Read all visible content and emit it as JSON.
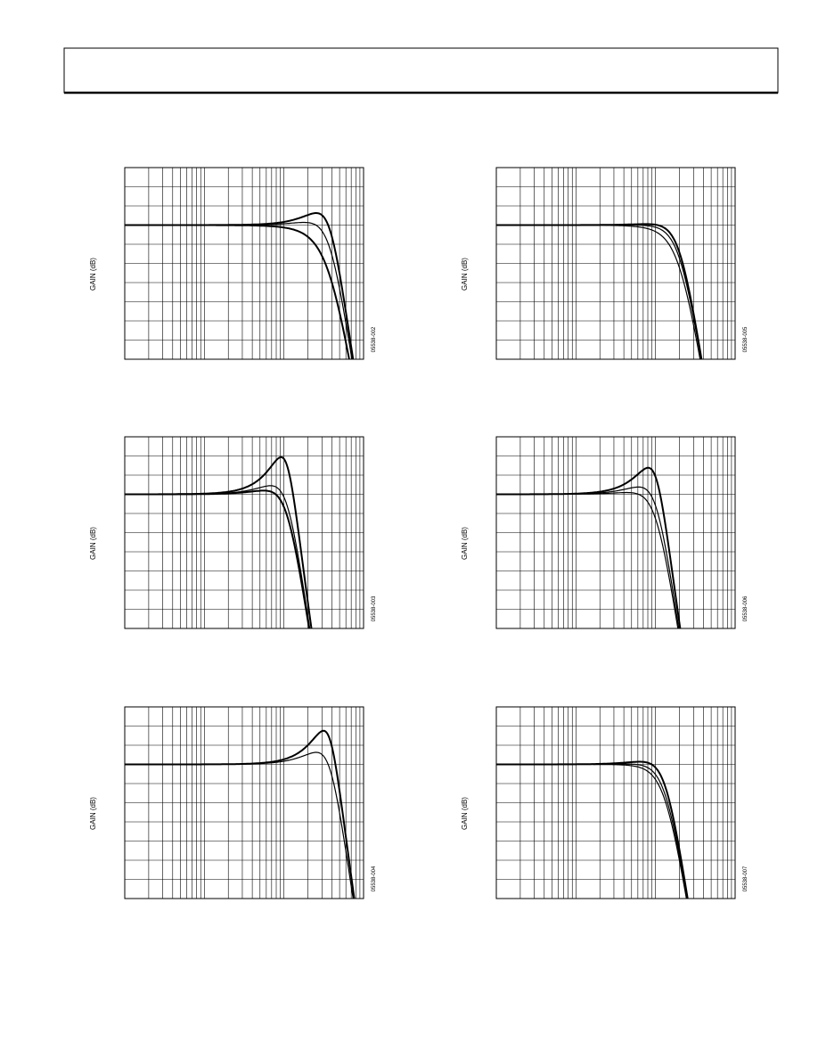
{
  "plots": [
    {
      "y_label": "GAIN (dB)",
      "figure_id": "05538-002"
    },
    {
      "y_label": "GAIN (dB)",
      "figure_id": "05538-005"
    },
    {
      "y_label": "GAIN (dB)",
      "figure_id": "05538-003"
    },
    {
      "y_label": "GAIN (dB)",
      "figure_id": "05538-006"
    },
    {
      "y_label": "GAIN (dB)",
      "figure_id": "05538-004"
    },
    {
      "y_label": "GAIN (dB)",
      "figure_id": "05538-007"
    }
  ]
}
